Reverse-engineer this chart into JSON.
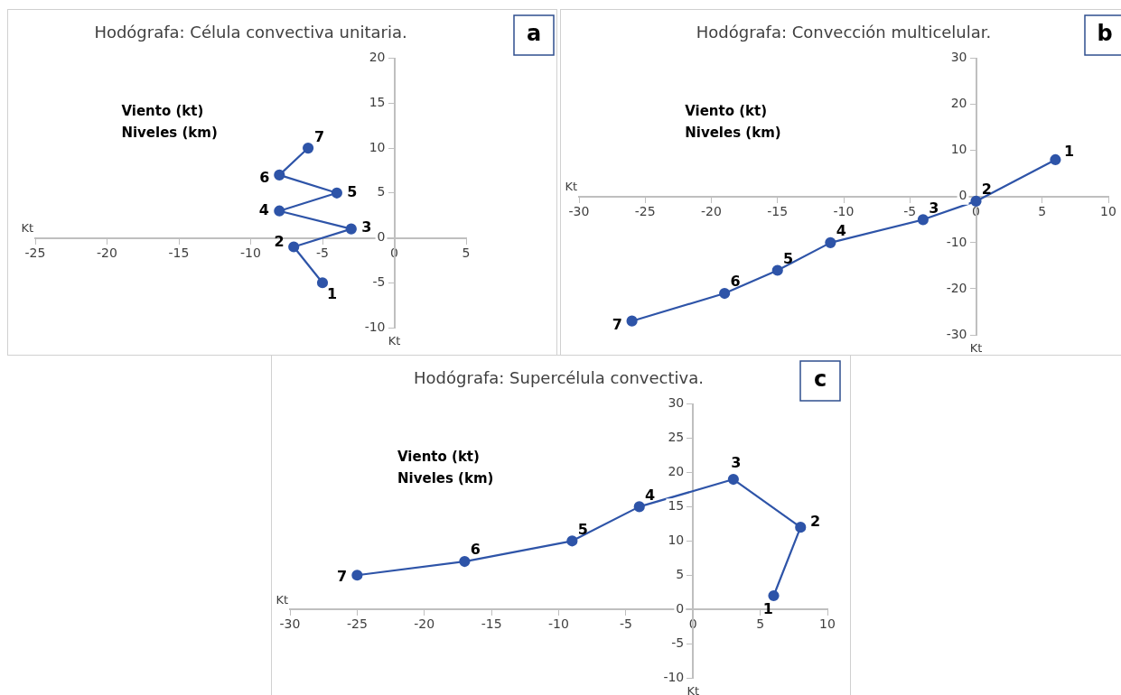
{
  "chart_data": [
    {
      "type": "line",
      "title": "Hodógrafa: Célula convectiva unitaria.",
      "xlabel": "Kt",
      "x": [
        -5,
        -7,
        -3,
        -8,
        -4,
        -8,
        -6
      ],
      "values": [
        -5,
        -1,
        1,
        3,
        5,
        7,
        10
      ],
      "color": "#2e54a8",
      "marker": "circle",
      "line_style": "solid",
      "xlim": [
        -25,
        5
      ],
      "xticks": [
        -25,
        -20,
        -15,
        -10,
        -5,
        0,
        5
      ],
      "ylim": [
        -10,
        20
      ],
      "yticks": [
        -10,
        -5,
        0,
        5,
        10,
        15,
        20
      ],
      "annotations": [
        {
          "text": "1",
          "x": -5,
          "y": -5
        },
        {
          "text": "2",
          "x": -7,
          "y": -1
        },
        {
          "text": "3",
          "x": -3,
          "y": 1
        },
        {
          "text": "4",
          "x": -8,
          "y": 3
        },
        {
          "text": "5",
          "x": -4,
          "y": 5
        },
        {
          "text": "6",
          "x": -8,
          "y": 7
        },
        {
          "text": "7",
          "x": -6,
          "y": 10
        },
        "Viento (kt)",
        "Niveles (km)",
        "Kt",
        "a"
      ]
    },
    {
      "type": "line",
      "title": "Hodógrafa: Convección multicelular.",
      "xlabel": "Kt",
      "x": [
        6,
        0,
        -4,
        -11,
        -15,
        -19,
        -26
      ],
      "values": [
        8,
        -1,
        -5,
        -10,
        -16,
        -21,
        -27
      ],
      "color": "#2e54a8",
      "marker": "circle",
      "line_style": "solid",
      "xlim": [
        -30,
        10
      ],
      "xticks": [
        -30,
        -25,
        -20,
        -15,
        -10,
        -5,
        0,
        5,
        10
      ],
      "ylim": [
        -30,
        30
      ],
      "yticks": [
        -30,
        -20,
        -10,
        0,
        10,
        20,
        30
      ],
      "annotations": [
        {
          "text": "1",
          "x": 6,
          "y": 8
        },
        {
          "text": "2",
          "x": 0,
          "y": -1
        },
        {
          "text": "3",
          "x": -4,
          "y": -5
        },
        {
          "text": "4",
          "x": -11,
          "y": -10
        },
        {
          "text": "5",
          "x": -15,
          "y": -16
        },
        {
          "text": "6",
          "x": -19,
          "y": -21
        },
        {
          "text": "7",
          "x": -26,
          "y": -27
        },
        "Viento (kt)",
        "Niveles (km)",
        "Kt",
        "b"
      ]
    },
    {
      "type": "line",
      "title": "Hodógrafa: Supercélula convectiva.",
      "xlabel": "Kt",
      "x": [
        6,
        8,
        3,
        -4,
        -9,
        -17,
        -25
      ],
      "values": [
        2,
        12,
        19,
        15,
        10,
        7,
        5
      ],
      "color": "#2e54a8",
      "marker": "circle",
      "line_style": "solid",
      "xlim": [
        -30,
        10
      ],
      "xticks": [
        -30,
        -25,
        -20,
        -15,
        -10,
        -5,
        0,
        5,
        10
      ],
      "ylim": [
        -10,
        30
      ],
      "yticks": [
        -10,
        -5,
        0,
        5,
        10,
        15,
        20,
        25,
        30
      ],
      "annotations": [
        {
          "text": "1",
          "x": 6,
          "y": 2
        },
        {
          "text": "2",
          "x": 8,
          "y": 12
        },
        {
          "text": "3",
          "x": 3,
          "y": 19
        },
        {
          "text": "4",
          "x": -4,
          "y": 15
        },
        {
          "text": "5",
          "x": -9,
          "y": 10
        },
        {
          "text": "6",
          "x": -17,
          "y": 7
        },
        {
          "text": "7",
          "x": -25,
          "y": 5
        },
        "Viento (kt)",
        "Niveles (km)",
        "Kt",
        "c"
      ]
    }
  ]
}
